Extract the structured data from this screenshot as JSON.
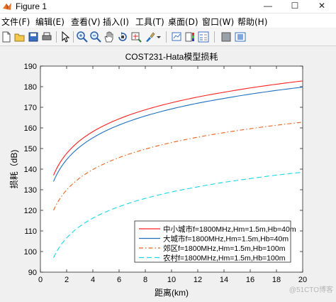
{
  "window": {
    "title": "Figure 1",
    "controls": {
      "minimize": "—",
      "maximize": "☐",
      "close": "✕"
    }
  },
  "menu": [
    "文件(F)",
    "编辑(E)",
    "查看(V)",
    "插入(I)",
    "工具(T)",
    "桌面(D)",
    "窗口(W)",
    "帮助(H)"
  ],
  "toolbar": {
    "buttons": [
      "new-figure",
      "open-file",
      "save",
      "print",
      "pointer",
      "zoom-in",
      "zoom-out",
      "pan",
      "rotate-3d",
      "data-cursor",
      "brush",
      "link-plot",
      "insert-colorbar",
      "insert-legend",
      "hide-plot-tools",
      "show-plot-tools"
    ]
  },
  "watermark": "@51CTO博客",
  "colors": {
    "series1": "#ff2020",
    "series2": "#1f6fbf",
    "series3": "#e8641b",
    "series4": "#19d7e6"
  },
  "chart_data": {
    "type": "line",
    "title": "COST231-Hata模型损耗",
    "xlabel": "距离(km)",
    "ylabel": "损耗（dB)",
    "xlim": [
      0,
      20
    ],
    "ylim": [
      90,
      190
    ],
    "xticks": [
      0,
      2,
      4,
      6,
      8,
      10,
      12,
      14,
      16,
      18,
      20
    ],
    "yticks": [
      90,
      100,
      110,
      120,
      130,
      140,
      150,
      160,
      170,
      180,
      190
    ],
    "grid": false,
    "legend_position": "lower-right",
    "x": [
      1,
      2,
      4,
      6,
      8,
      10,
      12,
      14,
      16,
      18,
      20
    ],
    "series": [
      {
        "name": "中小城市f=1800MHz,Hm=1.5m,Hb=40m",
        "style": "solid",
        "values": [
          137.0,
          147.6,
          158.2,
          164.4,
          168.8,
          172.2,
          175.0,
          177.3,
          179.4,
          181.2,
          182.8
        ]
      },
      {
        "name": "大城市f=1800MHz,Hm=1.5m,Hb=40m",
        "style": "solid",
        "values": [
          134.0,
          144.6,
          155.2,
          161.4,
          165.8,
          169.2,
          172.0,
          174.3,
          176.4,
          178.2,
          179.8
        ]
      },
      {
        "name": "郊区f=1800MHz,Hm=1.5m,Hb=100m",
        "style": "dashdot",
        "values": [
          120.0,
          129.9,
          139.8,
          145.6,
          149.7,
          152.9,
          155.5,
          157.7,
          159.6,
          161.3,
          162.8
        ]
      },
      {
        "name": "农村f=1800MHz,Hm=1.5m,Hb=100m",
        "style": "dashed",
        "values": [
          97.0,
          106.6,
          116.2,
          121.8,
          125.8,
          128.9,
          131.4,
          133.6,
          135.4,
          137.1,
          138.5
        ]
      }
    ]
  }
}
